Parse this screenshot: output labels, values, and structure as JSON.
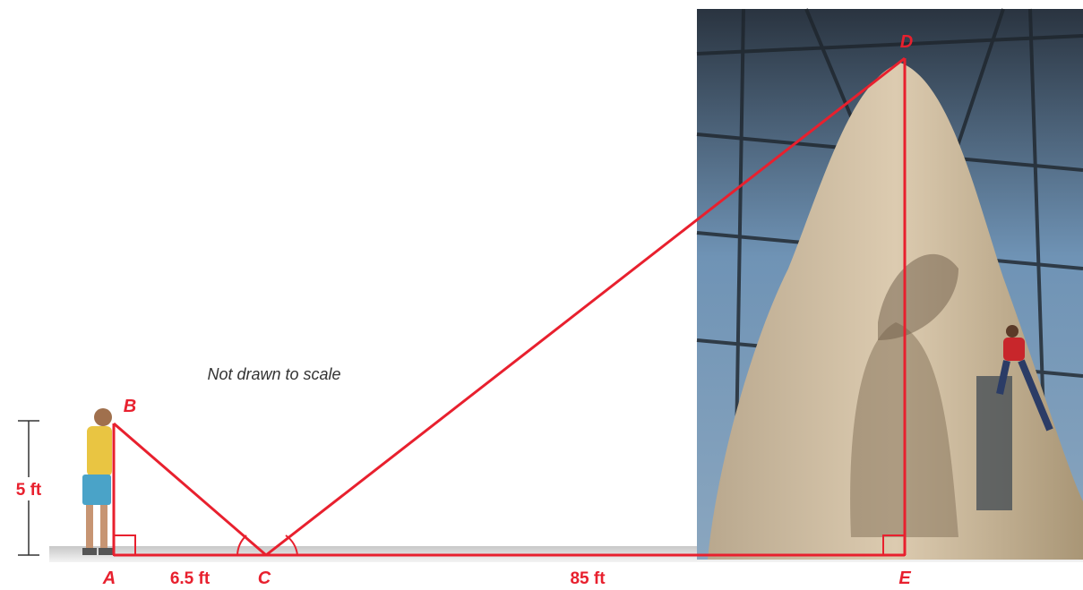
{
  "points": [
    "A",
    "B",
    "C",
    "D",
    "E"
  ],
  "measurements": [
    "5 ft",
    "6.5 ft",
    "85 ft"
  ],
  "note": "Not drawn to scale"
}
